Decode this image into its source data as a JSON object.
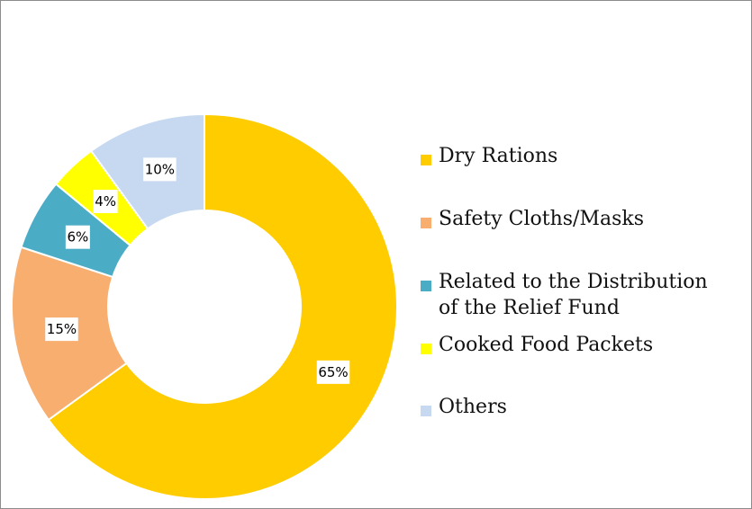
{
  "chart_data": {
    "type": "pie",
    "variant": "donut",
    "title": "",
    "legend_position": "right",
    "categories": [
      "Dry Rations",
      "Safety Cloths/Masks",
      "Related to the Distribution of the Relief Fund",
      "Cooked Food Packets",
      "Others"
    ],
    "values": [
      65,
      15,
      6,
      4,
      10
    ],
    "value_labels": [
      "65%",
      "15%",
      "6%",
      "4%",
      "10%"
    ],
    "colors": [
      "#FFCC00",
      "#F7AE6F",
      "#4BACC6",
      "#FFFF00",
      "#C6D9F1"
    ],
    "legend": {
      "items": [
        {
          "lines": [
            "Dry Rations"
          ]
        },
        {
          "lines": [
            "Safety Cloths/Masks"
          ]
        },
        {
          "lines": [
            "Related to the Distribution",
            "of the Relief Fund"
          ]
        },
        {
          "lines": [
            "Cooked Food Packets"
          ]
        },
        {
          "lines": [
            "Others"
          ]
        }
      ]
    }
  }
}
